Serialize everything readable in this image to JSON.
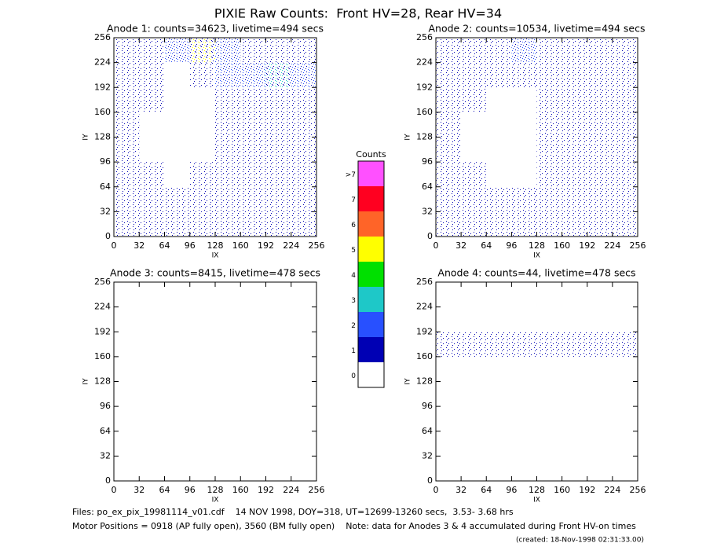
{
  "title": "PIXIE Raw Counts:  Front HV=28, Rear HV=34",
  "footer": [
    "Files: po_ex_pix_19981114_v01.cdf    14 NOV 1998, DOY=318, UT=12699-13260 secs,  3.53- 3.68 hrs",
    "Motor Positions = 0918 (AP fully open), 3560 (BM fully open)    Note: data for Anodes 3 & 4 accumulated during Front HV-on times",
    "(created: 18-Nov-1998 02:31:33.00)"
  ],
  "chart_data": [
    {
      "type": "heatmap",
      "title": "Anode 1: counts=34623, livetime=494 secs",
      "x_label": "IX",
      "y_label": "IY",
      "xlim": [
        0,
        256
      ],
      "ylim": [
        0,
        256
      ],
      "xticks": [
        0,
        32,
        64,
        96,
        128,
        160,
        192,
        224,
        256
      ],
      "yticks": [
        0,
        32,
        64,
        96,
        128,
        160,
        192,
        224,
        256
      ],
      "z": [
        [
          1,
          1,
          1,
          1,
          1,
          1,
          1,
          1
        ],
        [
          1,
          1,
          1,
          1,
          1,
          1,
          1,
          1
        ],
        [
          1,
          1,
          0,
          1,
          1,
          1,
          1,
          1
        ],
        [
          1,
          0,
          0,
          0,
          1,
          1,
          1,
          1
        ],
        [
          1,
          0,
          0,
          0,
          1,
          1,
          1,
          1
        ],
        [
          1,
          1,
          0,
          0,
          1,
          1,
          1,
          1
        ],
        [
          1,
          1,
          0,
          1,
          2,
          2,
          3,
          2
        ],
        [
          1,
          1,
          2,
          5,
          2,
          1,
          1,
          1
        ]
      ]
    },
    {
      "type": "heatmap",
      "title": "Anode 2: counts=10534, livetime=494 secs",
      "x_label": "IX",
      "y_label": "IY",
      "xlim": [
        0,
        256
      ],
      "ylim": [
        0,
        256
      ],
      "xticks": [
        0,
        32,
        64,
        96,
        128,
        160,
        192,
        224,
        256
      ],
      "yticks": [
        0,
        32,
        64,
        96,
        128,
        160,
        192,
        224,
        256
      ],
      "z": [
        [
          1,
          1,
          1,
          1,
          1,
          1,
          1,
          1
        ],
        [
          1,
          1,
          1,
          1,
          1,
          1,
          1,
          1
        ],
        [
          1,
          1,
          0,
          0,
          1,
          1,
          1,
          1
        ],
        [
          1,
          0,
          0,
          0,
          1,
          1,
          1,
          1
        ],
        [
          1,
          0,
          0,
          0,
          1,
          1,
          1,
          1
        ],
        [
          1,
          1,
          0,
          0,
          1,
          1,
          1,
          1
        ],
        [
          1,
          1,
          1,
          1,
          1,
          1,
          1,
          1
        ],
        [
          1,
          1,
          1,
          2,
          1,
          1,
          1,
          1
        ]
      ]
    },
    {
      "type": "heatmap",
      "title": "Anode 3: counts=8415, livetime=478 secs",
      "x_label": "IX",
      "y_label": "IY",
      "xlim": [
        0,
        256
      ],
      "ylim": [
        0,
        256
      ],
      "xticks": [
        0,
        32,
        64,
        96,
        128,
        160,
        192,
        224,
        256
      ],
      "yticks": [
        0,
        32,
        64,
        96,
        128,
        160,
        192,
        224,
        256
      ],
      "z": [
        [
          0,
          0,
          0,
          0,
          0,
          0,
          0,
          0
        ],
        [
          0,
          0,
          0,
          0,
          0,
          0,
          0,
          0
        ],
        [
          0,
          0,
          0,
          0,
          0,
          0,
          0,
          0
        ],
        [
          0,
          0,
          0,
          0,
          0,
          0,
          0,
          0
        ],
        [
          0,
          0,
          0,
          0,
          0,
          0,
          0,
          0
        ],
        [
          0,
          0,
          0,
          0,
          0,
          0,
          0,
          0
        ],
        [
          0,
          0,
          0,
          0,
          0,
          0,
          0,
          0
        ],
        [
          0,
          0,
          0,
          0,
          0,
          0,
          0,
          0
        ]
      ]
    },
    {
      "type": "heatmap",
      "title": "Anode 4: counts=44, livetime=478 secs",
      "x_label": "IX",
      "y_label": "IY",
      "xlim": [
        0,
        256
      ],
      "ylim": [
        0,
        256
      ],
      "xticks": [
        0,
        32,
        64,
        96,
        128,
        160,
        192,
        224,
        256
      ],
      "yticks": [
        0,
        32,
        64,
        96,
        128,
        160,
        192,
        224,
        256
      ],
      "z": [
        [
          0,
          0,
          0,
          0,
          0,
          0,
          0,
          0
        ],
        [
          0,
          0,
          0,
          0,
          0,
          0,
          0,
          0
        ],
        [
          0,
          0,
          0,
          0,
          0,
          0,
          0,
          0
        ],
        [
          0,
          0,
          0,
          0,
          0,
          0,
          0,
          0
        ],
        [
          0,
          0,
          0,
          0,
          0,
          0,
          0,
          0
        ],
        [
          1,
          1,
          1,
          1,
          1,
          1,
          1,
          1
        ],
        [
          0,
          0,
          0,
          0,
          0,
          0,
          0,
          0
        ],
        [
          0,
          0,
          0,
          0,
          0,
          0,
          0,
          0
        ]
      ]
    },
    {
      "type": "colorbar",
      "title": "Counts",
      "categories": [
        "0",
        "1",
        "2",
        "3",
        "4",
        "5",
        "6",
        "7",
        ">7"
      ],
      "colors": [
        "#ffffff",
        "#0000b4",
        "#2850ff",
        "#1ec8c8",
        "#00e000",
        "#ffff00",
        "#ff6428",
        "#ff0020",
        "#ff50ff"
      ]
    }
  ]
}
